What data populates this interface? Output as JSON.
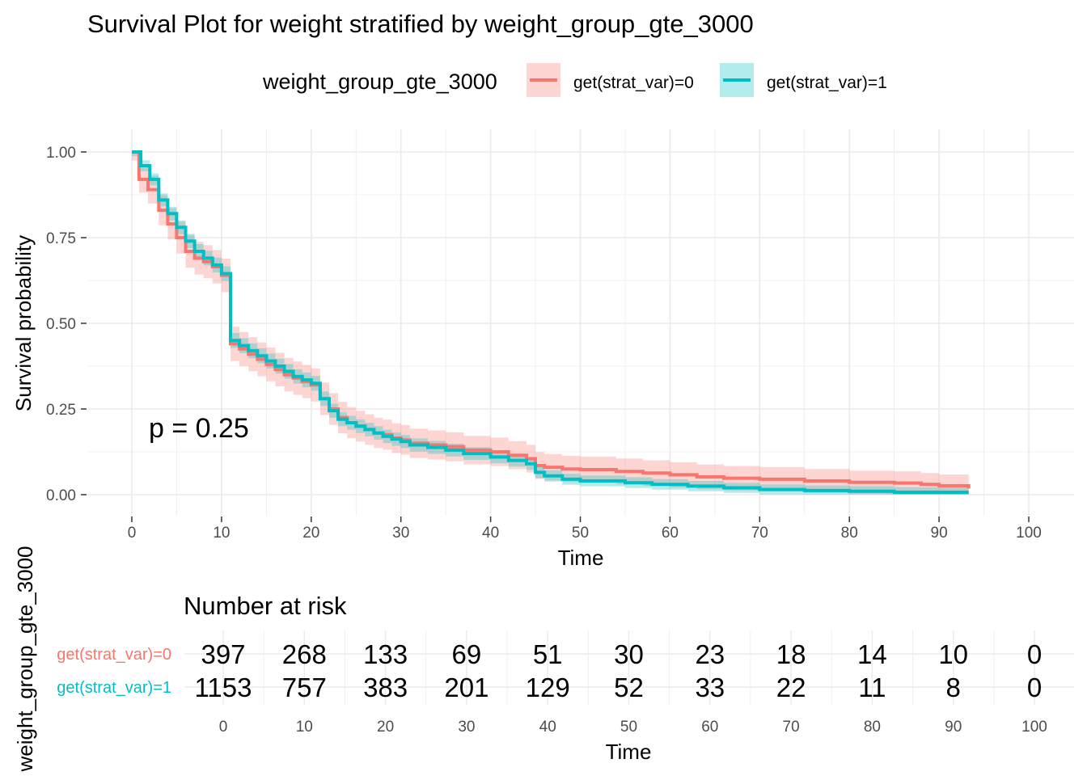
{
  "title": "Survival Plot for weight stratified by weight_group_gte_3000",
  "legend": {
    "title": "weight_group_gte_3000",
    "position": "top",
    "items": [
      {
        "label": "get(strat_var)=0",
        "color": "#F8766D"
      },
      {
        "label": "get(strat_var)=1",
        "color": "#00BFC4"
      }
    ]
  },
  "chart_data": [
    {
      "type": "line",
      "subtype": "kaplan-meier step curves with confidence bands",
      "title": "Survival Plot for weight stratified by weight_group_gte_3000",
      "xlabel": "Time",
      "ylabel": "Survival probability",
      "xlim": [
        0,
        100
      ],
      "ylim": [
        0,
        1
      ],
      "x_ticks": [
        0,
        10,
        20,
        30,
        40,
        50,
        60,
        70,
        80,
        90,
        100
      ],
      "y_ticks": [
        0,
        0.25,
        0.5,
        0.75,
        1
      ],
      "y_tick_labels": [
        "0.00",
        "0.25",
        "0.50",
        "0.75",
        "1.00"
      ],
      "grid": true,
      "annotation": "p = 0.25",
      "series": [
        {
          "name": "get(strat_var)=0",
          "color": "#F8766D",
          "points": [
            [
              0,
              1
            ],
            [
              0.8,
              0.92
            ],
            [
              1.8,
              0.89
            ],
            [
              3,
              0.83
            ],
            [
              4,
              0.79
            ],
            [
              5,
              0.75
            ],
            [
              6,
              0.71
            ],
            [
              7,
              0.69
            ],
            [
              8,
              0.68
            ],
            [
              9,
              0.665
            ],
            [
              10,
              0.64
            ],
            [
              11,
              0.44
            ],
            [
              12,
              0.425
            ],
            [
              13,
              0.41
            ],
            [
              14,
              0.395
            ],
            [
              15,
              0.38
            ],
            [
              16,
              0.365
            ],
            [
              17,
              0.35
            ],
            [
              18,
              0.34
            ],
            [
              19,
              0.33
            ],
            [
              20,
              0.32
            ],
            [
              21,
              0.28
            ],
            [
              22,
              0.25
            ],
            [
              23,
              0.225
            ],
            [
              24,
              0.21
            ],
            [
              25,
              0.2
            ],
            [
              26,
              0.19
            ],
            [
              27,
              0.18
            ],
            [
              28,
              0.175
            ],
            [
              29,
              0.165
            ],
            [
              30,
              0.16
            ],
            [
              31,
              0.15
            ],
            [
              33,
              0.145
            ],
            [
              35,
              0.14
            ],
            [
              37,
              0.13
            ],
            [
              40,
              0.125
            ],
            [
              42,
              0.115
            ],
            [
              44,
              0.105
            ],
            [
              45,
              0.085
            ],
            [
              46,
              0.08
            ],
            [
              48,
              0.075
            ],
            [
              50,
              0.073
            ],
            [
              54,
              0.068
            ],
            [
              57,
              0.063
            ],
            [
              60,
              0.058
            ],
            [
              63,
              0.052
            ],
            [
              66,
              0.048
            ],
            [
              70,
              0.045
            ],
            [
              75,
              0.04
            ],
            [
              80,
              0.036
            ],
            [
              85,
              0.034
            ],
            [
              88,
              0.03
            ],
            [
              90,
              0.026
            ],
            [
              93.3,
              0.018
            ]
          ]
        },
        {
          "name": "get(strat_var)=1",
          "color": "#00BFC4",
          "points": [
            [
              0,
              1
            ],
            [
              1,
              0.96
            ],
            [
              2,
              0.92
            ],
            [
              3,
              0.86
            ],
            [
              4,
              0.82
            ],
            [
              5,
              0.78
            ],
            [
              6,
              0.74
            ],
            [
              7,
              0.71
            ],
            [
              8,
              0.69
            ],
            [
              9,
              0.67
            ],
            [
              10,
              0.645
            ],
            [
              11,
              0.45
            ],
            [
              12,
              0.435
            ],
            [
              13,
              0.42
            ],
            [
              14,
              0.405
            ],
            [
              15,
              0.39
            ],
            [
              16,
              0.375
            ],
            [
              17,
              0.36
            ],
            [
              18,
              0.345
            ],
            [
              19,
              0.335
            ],
            [
              20,
              0.325
            ],
            [
              21,
              0.28
            ],
            [
              22,
              0.245
            ],
            [
              23,
              0.22
            ],
            [
              24,
              0.21
            ],
            [
              25,
              0.2
            ],
            [
              26,
              0.19
            ],
            [
              27,
              0.18
            ],
            [
              28,
              0.17
            ],
            [
              29,
              0.162
            ],
            [
              30,
              0.155
            ],
            [
              31,
              0.145
            ],
            [
              33,
              0.138
            ],
            [
              35,
              0.13
            ],
            [
              37,
              0.12
            ],
            [
              40,
              0.11
            ],
            [
              42,
              0.1
            ],
            [
              44,
              0.09
            ],
            [
              45,
              0.065
            ],
            [
              46,
              0.055
            ],
            [
              48,
              0.045
            ],
            [
              50,
              0.04
            ],
            [
              55,
              0.035
            ],
            [
              58,
              0.03
            ],
            [
              62,
              0.025
            ],
            [
              66,
              0.02
            ],
            [
              70,
              0.015
            ],
            [
              75,
              0.012
            ],
            [
              80,
              0.01
            ],
            [
              85,
              0.007
            ],
            [
              93.3,
              0.007
            ]
          ]
        }
      ]
    },
    {
      "type": "table",
      "title": "Number at risk",
      "xlabel": "Time",
      "ylabel": "weight_group_gte_3000",
      "x_ticks": [
        0,
        10,
        20,
        30,
        40,
        50,
        60,
        70,
        80,
        90,
        100
      ],
      "rows": [
        {
          "name": "get(strat_var)=0",
          "color": "#F8766D",
          "values": [
            397,
            268,
            133,
            69,
            51,
            30,
            23,
            18,
            14,
            10,
            0
          ]
        },
        {
          "name": "get(strat_var)=1",
          "color": "#00BFC4",
          "values": [
            1153,
            757,
            383,
            201,
            129,
            52,
            33,
            22,
            11,
            8,
            0
          ]
        }
      ]
    }
  ]
}
